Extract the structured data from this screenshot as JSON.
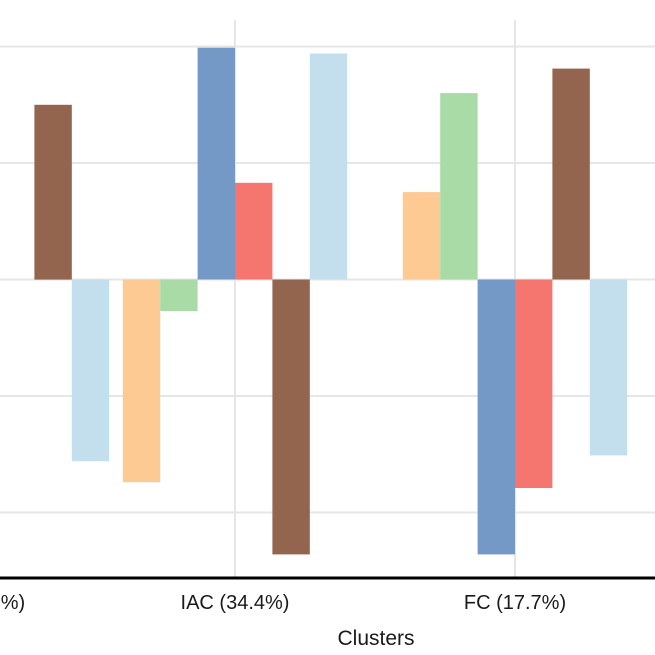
{
  "chart_data": {
    "type": "bar",
    "xlabel": "Clusters",
    "categories": [
      "%)",
      "IAC (34.4%)",
      "FC (17.7%)"
    ],
    "series": [
      {
        "color": "#fdca93",
        "values": [
          null,
          -1.74,
          0.75
        ]
      },
      {
        "color": "#a9dba6",
        "values": [
          null,
          -0.27,
          1.6
        ]
      },
      {
        "color": "#7599c6",
        "values": [
          null,
          1.99,
          -2.36
        ]
      },
      {
        "color": "#f4766e",
        "values": [
          null,
          0.83,
          -1.79
        ]
      },
      {
        "color": "#93644e",
        "values": [
          1.5,
          -2.36,
          1.81
        ]
      },
      {
        "color": "#c3dfed",
        "values": [
          -1.56,
          1.94,
          -1.51
        ]
      }
    ],
    "ylim": [
      -2.56,
      2.56
    ],
    "y_gridlines": [
      -2,
      -1,
      0,
      1,
      2
    ],
    "grid": true,
    "legend": "none"
  }
}
